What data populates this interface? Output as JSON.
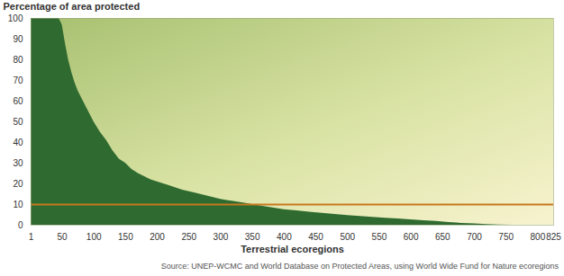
{
  "chart_data": {
    "type": "area",
    "ylabel": "Percentage of area protected",
    "xlabel": "Terrestrial ecoregions",
    "caption": "Source: UNEP-WCMC and World Database on Protected Areas, using World Wide Fund for Nature ecoregions",
    "x": [
      1,
      10,
      20,
      30,
      40,
      45,
      50,
      55,
      60,
      65,
      70,
      75,
      80,
      90,
      100,
      110,
      120,
      130,
      140,
      150,
      160,
      170,
      180,
      190,
      200,
      220,
      240,
      260,
      280,
      300,
      320,
      340,
      360,
      380,
      400,
      420,
      440,
      460,
      480,
      500,
      520,
      540,
      560,
      580,
      600,
      620,
      640,
      660,
      680,
      700,
      720,
      740,
      760,
      825
    ],
    "values": [
      100,
      100,
      100,
      100,
      100,
      100,
      97,
      88,
      80,
      74,
      69,
      65,
      62,
      56,
      50,
      45,
      41,
      36,
      32,
      30,
      27,
      25,
      23.5,
      22,
      21,
      19,
      17,
      15.5,
      14,
      12.5,
      11.5,
      10.5,
      9.5,
      8.5,
      7.5,
      7,
      6.3,
      5.8,
      5.2,
      4.7,
      4.2,
      3.8,
      3.4,
      3,
      2.6,
      2.2,
      1.8,
      1.3,
      0.9,
      0.6,
      0.3,
      0.1,
      0,
      0
    ],
    "color": "#2f6b30",
    "reference_line": {
      "value": 10,
      "color": "#c8781e"
    },
    "xlim": [
      1,
      825
    ],
    "xticks": [
      1,
      50,
      100,
      150,
      200,
      250,
      300,
      350,
      400,
      450,
      500,
      550,
      600,
      650,
      700,
      750,
      800,
      825
    ],
    "ylim": [
      0,
      100
    ],
    "yticks": [
      0,
      10,
      20,
      30,
      40,
      50,
      60,
      70,
      80,
      90,
      100
    ],
    "grid": false
  }
}
